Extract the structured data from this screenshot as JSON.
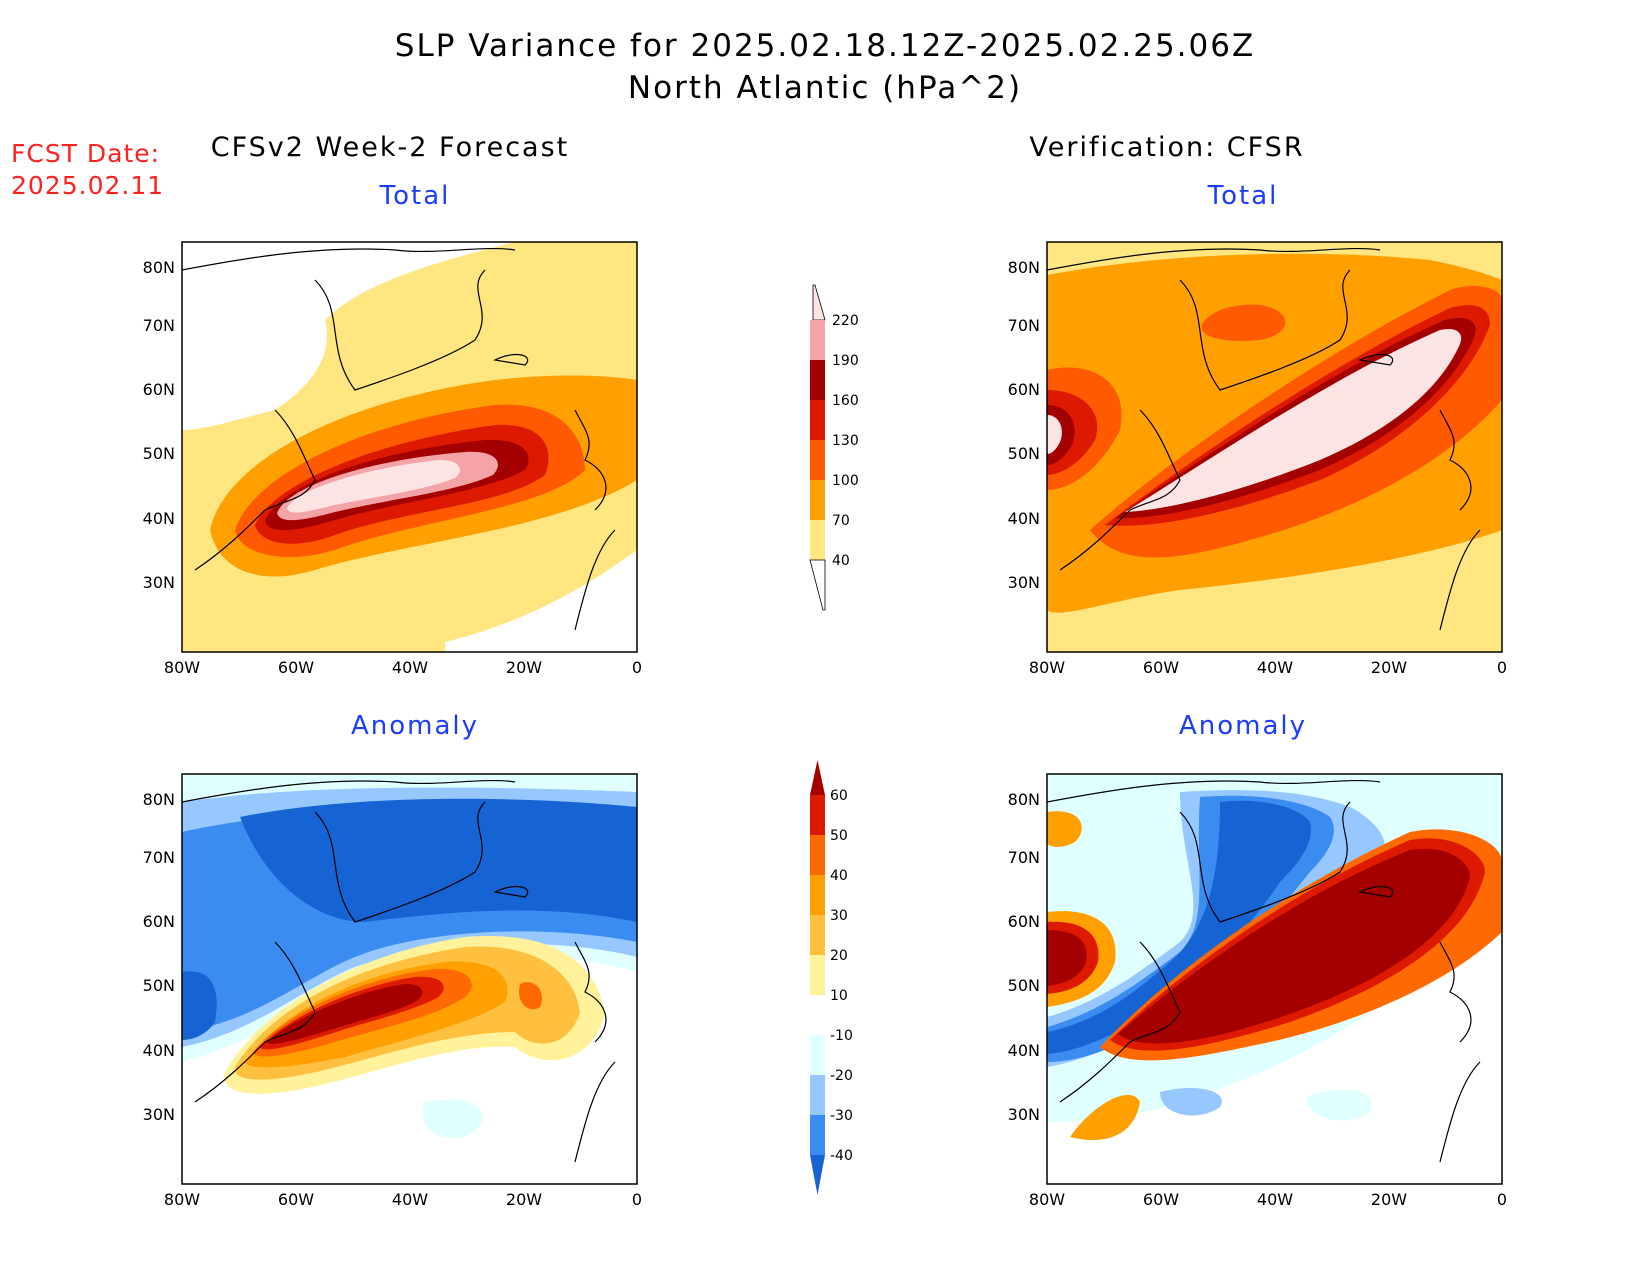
{
  "header": {
    "title_line1": "SLP Variance for 2025.02.18.12Z-2025.02.25.06Z",
    "title_line2": "North Atlantic (hPa^2)",
    "fcst_label": "FCST Date:",
    "fcst_date": "2025.02.11"
  },
  "columns": {
    "left": "CFSv2 Week-2 Forecast",
    "right": "Verification: CFSR"
  },
  "panels": {
    "top_left": "Total",
    "top_right": "Total",
    "bottom_left": "Anomaly",
    "bottom_right": "Anomaly"
  },
  "axes": {
    "lat_ticks": [
      "80N",
      "70N",
      "60N",
      "50N",
      "40N",
      "30N"
    ],
    "lon_ticks": [
      "80W",
      "60W",
      "40W",
      "20W",
      "0"
    ]
  },
  "colorbars": {
    "total": {
      "labels": [
        "220",
        "190",
        "160",
        "130",
        "100",
        "70",
        "40"
      ],
      "colors": [
        "#fde4e4",
        "#f4a3a6",
        "#a50000",
        "#dd1a00",
        "#ff5a00",
        "#ffa000",
        "#ffe680"
      ]
    },
    "anomaly": {
      "labels": [
        "60",
        "50",
        "40",
        "30",
        "20",
        "10",
        "-10",
        "-20",
        "-30",
        "-40"
      ],
      "colors": [
        "#a50000",
        "#dd1a00",
        "#ff6a00",
        "#ffa000",
        "#ffc040",
        "#fff29a",
        "#ffffff",
        "#e0ffff",
        "#96c8ff",
        "#3b8cf0",
        "#1663d4"
      ]
    }
  }
}
